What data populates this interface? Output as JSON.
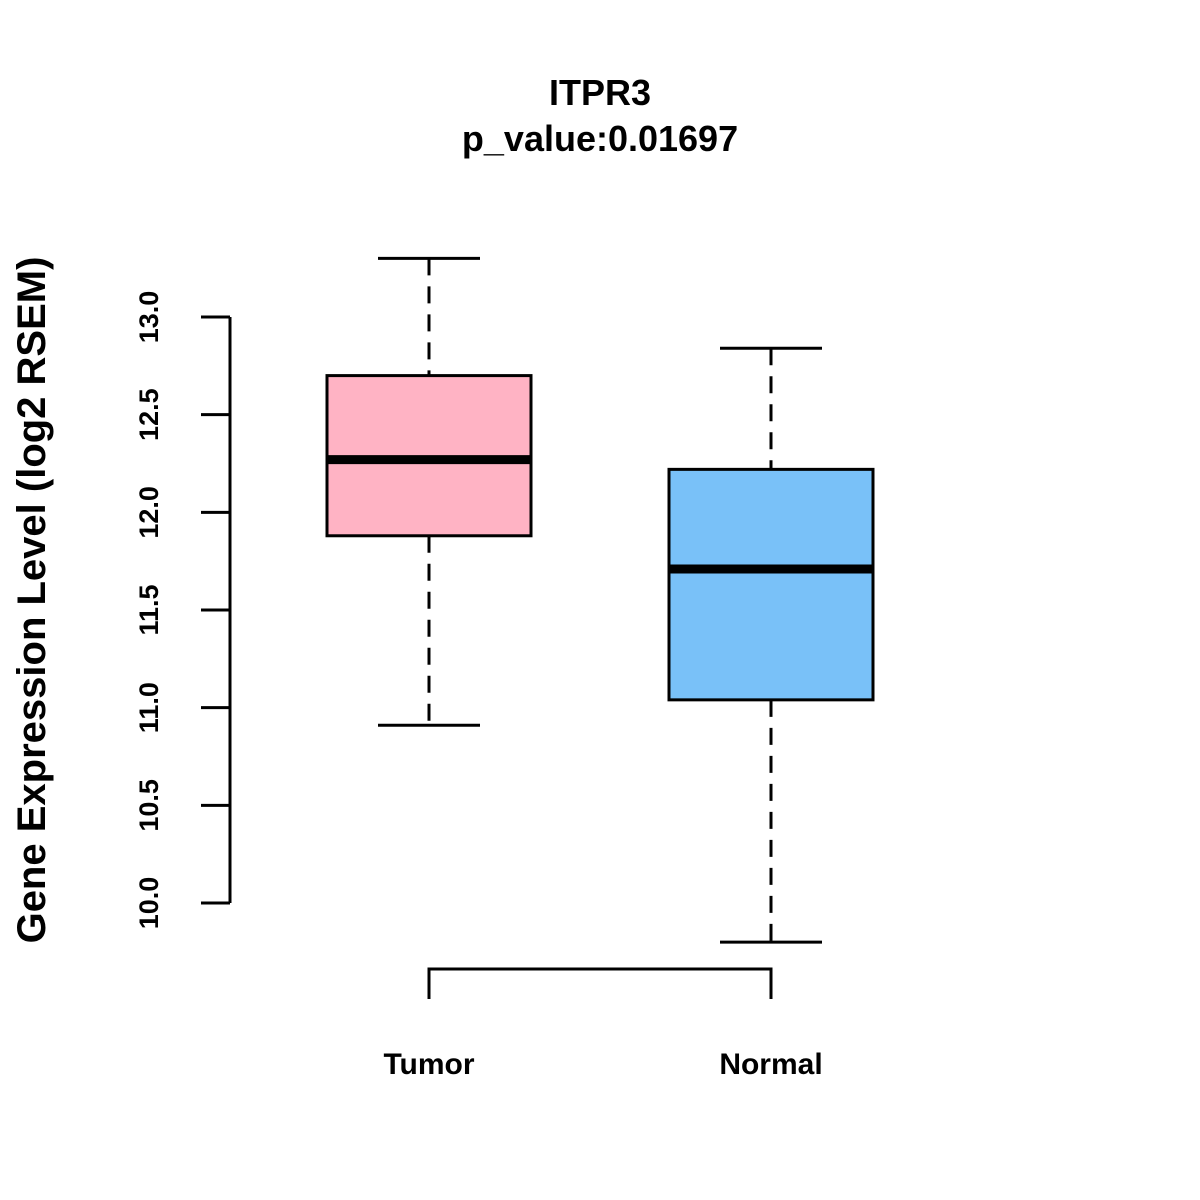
{
  "chart_data": {
    "type": "box",
    "title": "ITPR3",
    "subtitle": "p_value:0.01697",
    "xlabel": "",
    "ylabel": "Gene Expression Level (log2 RSEM)",
    "ylim": [
      10.0,
      13.0
    ],
    "yticks": [
      "10.0",
      "10.5",
      "11.0",
      "11.5",
      "12.0",
      "12.5",
      "13.0"
    ],
    "categories": [
      "Tumor",
      "Normal"
    ],
    "series": [
      {
        "name": "Tumor",
        "min": 10.91,
        "q1": 11.88,
        "median": 12.27,
        "q3": 12.7,
        "max": 13.3,
        "color": "#FFB3C4"
      },
      {
        "name": "Normal",
        "min": 9.8,
        "q1": 11.04,
        "median": 11.71,
        "q3": 12.22,
        "max": 12.84,
        "color": "#79C1F8"
      }
    ],
    "comparison_bracket": [
      "Tumor",
      "Normal"
    ],
    "grid": false
  }
}
